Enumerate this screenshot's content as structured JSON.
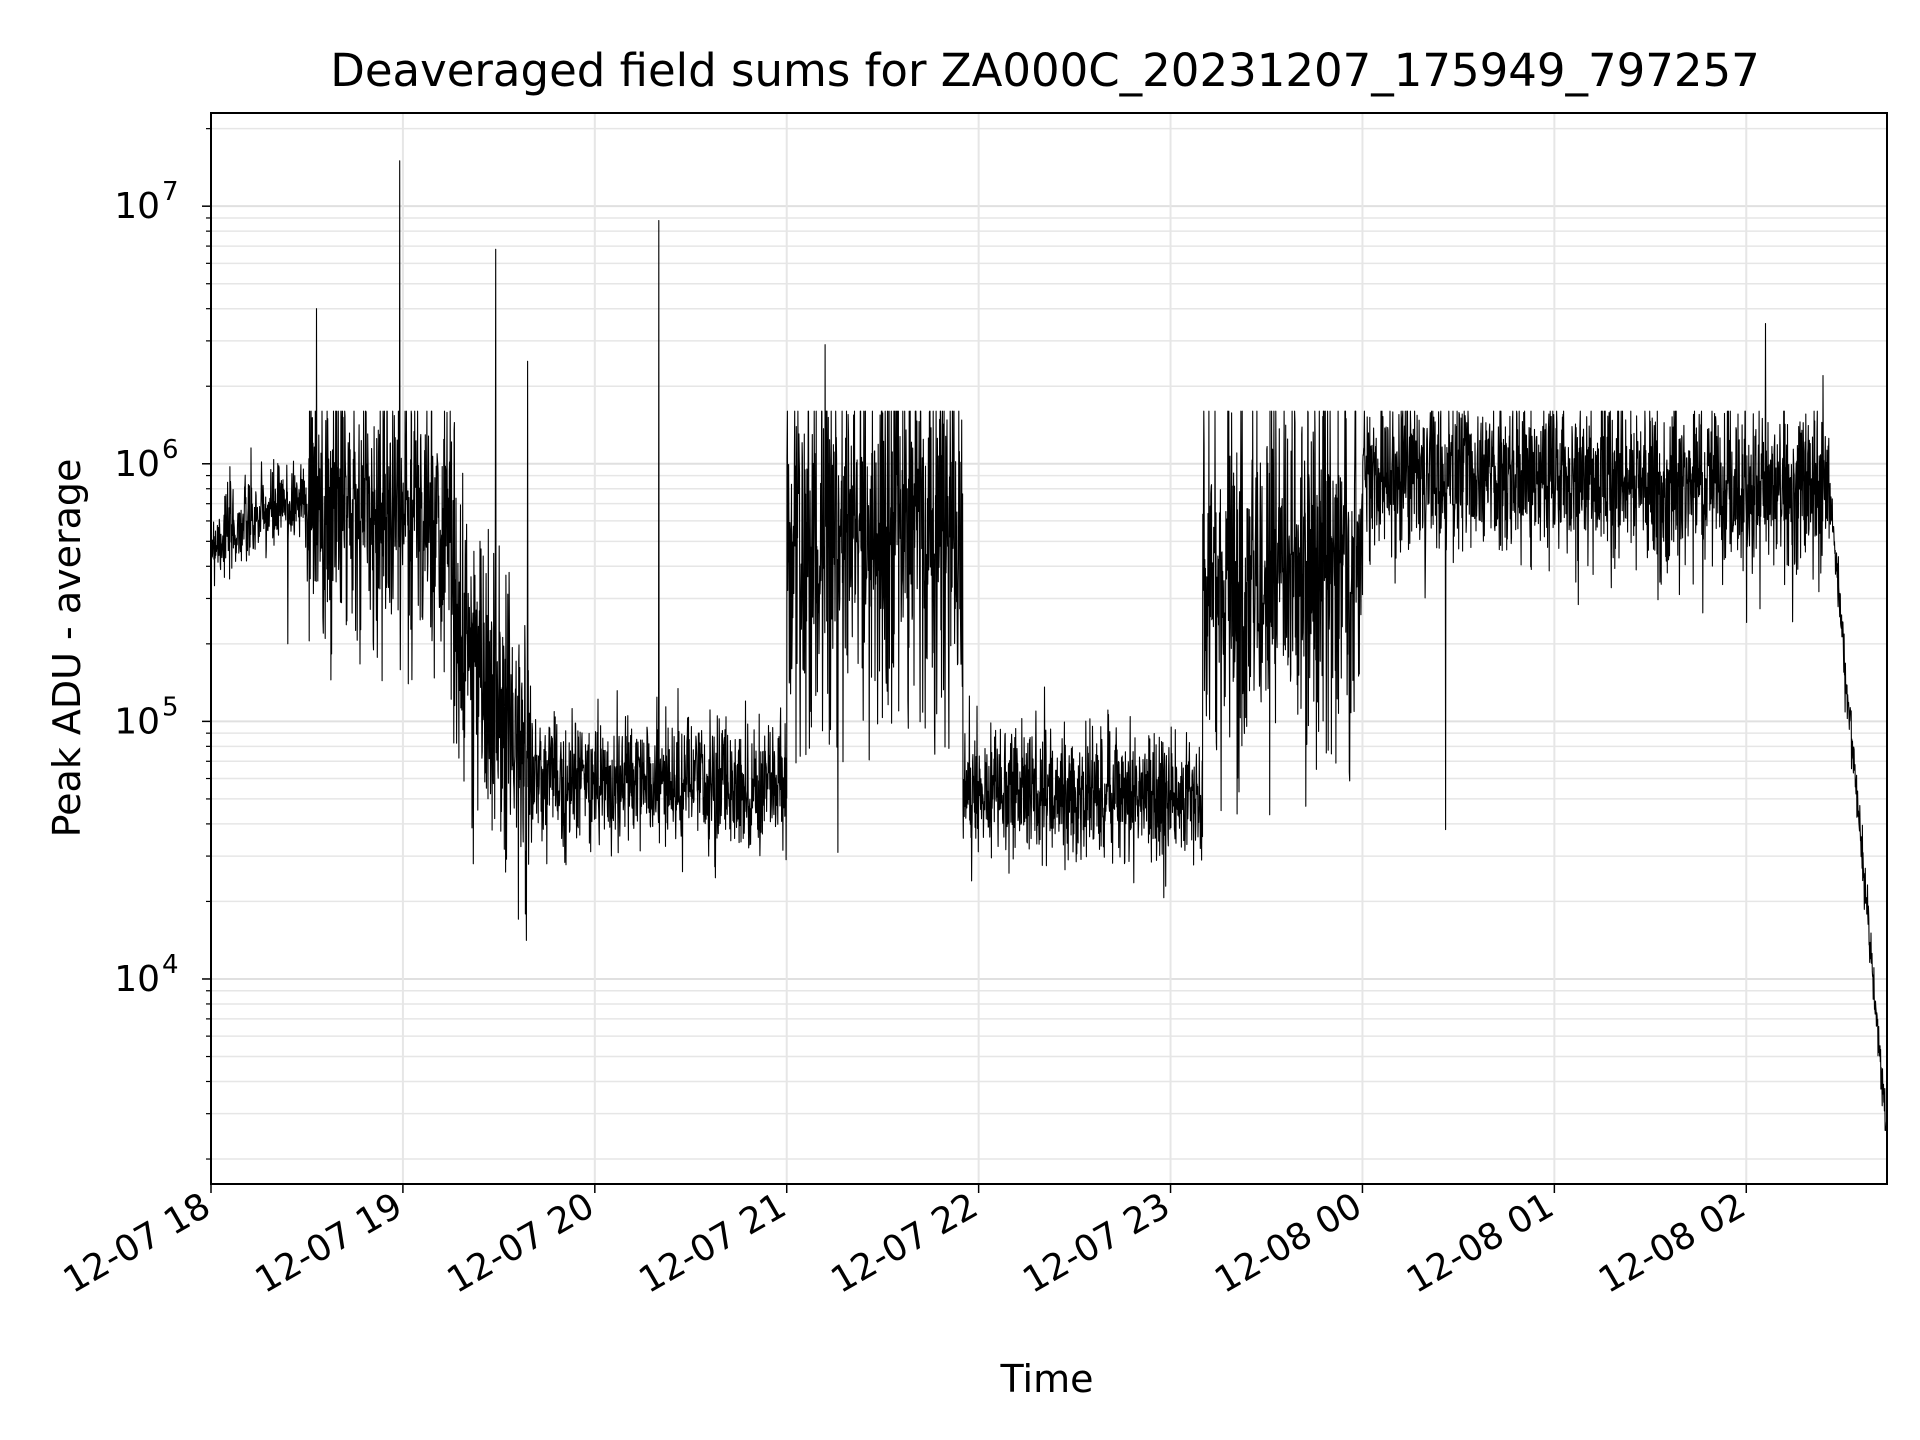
{
  "chart_data": {
    "type": "line",
    "title": "Deaveraged field sums for ZA000C_20231207_175949_797257",
    "xlabel": "Time",
    "ylabel": "Peak ADU - average",
    "yscale": "log",
    "grid": true,
    "legend": "none",
    "xlim": [
      "2023-12-07 18:00",
      "2023-12-08 02:44"
    ],
    "ylim": [
      1600,
      23000000
    ],
    "x_ticks": [
      "12-07 18",
      "12-07 19",
      "12-07 20",
      "12-07 21",
      "12-07 22",
      "12-07 23",
      "12-08 00",
      "12-08 01",
      "12-08 02"
    ],
    "y_ticks": [
      {
        "base": "10",
        "exp": "4",
        "value": 10000
      },
      {
        "base": "10",
        "exp": "5",
        "value": 100000
      },
      {
        "base": "10",
        "exp": "6",
        "value": 1000000
      },
      {
        "base": "10",
        "exp": "7",
        "value": 10000000
      }
    ],
    "series": [
      {
        "color": "#000000",
        "segments": [
          {
            "start": "2023-12-07 18:00",
            "end": "2023-12-07 18:30",
            "baseline": [
              500000,
              750000
            ],
            "noise": 0.25
          },
          {
            "start": "2023-12-07 18:30",
            "end": "2023-12-07 19:15",
            "baseline": [
              700000,
              600000
            ],
            "noise": 0.55
          },
          {
            "start": "2023-12-07 19:15",
            "end": "2023-12-07 19:40",
            "baseline": [
              300000,
              60000
            ],
            "noise": 0.6
          },
          {
            "start": "2023-12-07 19:40",
            "end": "2023-12-07 21:00",
            "baseline": [
              60000,
              55000
            ],
            "noise": 0.35
          },
          {
            "start": "2023-12-07 21:00",
            "end": "2023-12-07 21:55",
            "baseline": [
              500000,
              600000
            ],
            "noise": 0.75
          },
          {
            "start": "2023-12-07 21:55",
            "end": "2023-12-07 23:10",
            "baseline": [
              55000,
              50000
            ],
            "noise": 0.35
          },
          {
            "start": "2023-12-07 23:10",
            "end": "2023-12-08 00:00",
            "baseline": [
              300000,
              500000
            ],
            "noise": 0.8
          },
          {
            "start": "2023-12-08 00:00",
            "end": "2023-12-08 02:26",
            "baseline": [
              900000,
              800000
            ],
            "noise": 0.45
          },
          {
            "start": "2023-12-08 02:26",
            "end": "2023-12-08 02:44",
            "baseline": [
              800000,
              2500
            ],
            "noise": 0.15
          }
        ],
        "peaks": [
          {
            "x": "2023-12-07 18:33",
            "y": 4000000
          },
          {
            "x": "2023-12-07 18:59",
            "y": 15000000
          },
          {
            "x": "2023-12-07 19:29",
            "y": 6800000
          },
          {
            "x": "2023-12-07 19:39",
            "y": 2500000
          },
          {
            "x": "2023-12-07 20:20",
            "y": 8800000
          },
          {
            "x": "2023-12-07 21:12",
            "y": 2900000
          },
          {
            "x": "2023-12-08 02:06",
            "y": 3500000
          },
          {
            "x": "2023-12-08 02:24",
            "y": 2200000
          }
        ],
        "dips": [
          {
            "x": "2023-12-07 18:24",
            "y": 200000
          },
          {
            "x": "2023-12-07 19:22",
            "y": 28000
          },
          {
            "x": "2023-12-07 19:45",
            "y": 28000
          },
          {
            "x": "2023-12-07 21:16",
            "y": 31000
          },
          {
            "x": "2023-12-07 22:28",
            "y": 29000
          },
          {
            "x": "2023-12-08 00:26",
            "y": 38000
          }
        ]
      }
    ]
  }
}
